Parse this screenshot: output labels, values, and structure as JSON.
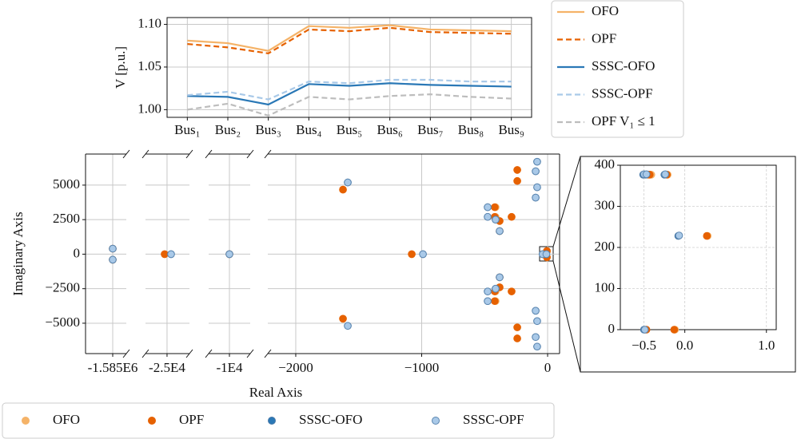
{
  "chart_data": [
    {
      "type": "line",
      "categories": [
        "Bus₁",
        "Bus₂",
        "Bus₃",
        "Bus₄",
        "Bus₅",
        "Bus₆",
        "Bus₇",
        "Bus₈",
        "Bus₉"
      ],
      "ylabel": "V [p.u.]",
      "ylim": [
        0.991,
        1.108
      ],
      "yticks": [
        {
          "value": 1,
          "label": "1.00"
        },
        {
          "value": 1.05,
          "label": "1.05"
        },
        {
          "value": 1.1,
          "label": "1.10"
        }
      ],
      "grid": true,
      "legend": "right",
      "series": [
        {
          "name": "OFO",
          "color": "#f5b368",
          "dashed": false,
          "values": [
            1.081,
            1.078,
            1.069,
            1.098,
            1.096,
            1.099,
            1.094,
            1.093,
            1.092
          ]
        },
        {
          "name": "OPF",
          "color": "#e66100",
          "dashed": true,
          "values": [
            1.077,
            1.073,
            1.066,
            1.094,
            1.092,
            1.096,
            1.091,
            1.09,
            1.089
          ]
        },
        {
          "name": "SSSC-OFO",
          "color": "#2a78b6",
          "dashed": false,
          "values": [
            1.016,
            1.015,
            1.006,
            1.03,
            1.028,
            1.031,
            1.029,
            1.028,
            1.027
          ]
        },
        {
          "name": "SSSC-OPF",
          "color": "#a9c9e8",
          "dashed": true,
          "values": [
            1.017,
            1.021,
            1.012,
            1.033,
            1.031,
            1.035,
            1.035,
            1.033,
            1.033
          ]
        },
        {
          "name": "OPF V₁ ≤ 1",
          "color": "#bdbdbd",
          "dashed": true,
          "values": [
            1.0,
            1.007,
            0.993,
            1.015,
            1.012,
            1.016,
            1.018,
            1.015,
            1.013
          ]
        }
      ]
    },
    {
      "type": "scatter",
      "xlabel": "Real Axis",
      "ylabel": "Imaginary Axis",
      "ylim": [
        -7200,
        7250
      ],
      "yticks": [
        5000,
        2500,
        0,
        {
          "value": -2500,
          "label": "−2500"
        },
        {
          "value": -5000,
          "label": "−5000"
        }
      ],
      "grid": true,
      "legend": "bottom",
      "panels": [
        {
          "xlim": [
            -1585216,
            -1584892
          ],
          "xticks": [
            {
              "value": -1585000,
              "label": "-1.585E6"
            }
          ]
        },
        {
          "xlim": [
            -25171,
            -24822
          ],
          "xticks": [
            {
              "value": -25000,
              "label": "-2.5E4"
            }
          ]
        },
        {
          "xlim": [
            -10165,
            -9835
          ],
          "xticks": [
            {
              "value": -10000,
              "label": "-1E4"
            }
          ]
        },
        {
          "xlim": [
            -2222,
            95
          ],
          "xticks": [
            {
              "value": -2000,
              "label": "−2000"
            },
            {
              "value": -1000,
              "label": "−1000"
            },
            0
          ]
        }
      ],
      "series": [
        {
          "name": "OFO",
          "color": "#f5b368",
          "edgecolor": "#f5b368",
          "x": [
            -1585000,
            -1585000,
            -25019,
            -10000,
            -1625,
            -1625,
            -1079,
            -241,
            -241,
            -241,
            -241,
            -413,
            -413,
            -413,
            -413,
            -381,
            -381,
            -286,
            -286,
            -381,
            -381,
            -5,
            -5
          ],
          "y": [
            400,
            -400,
            0,
            0,
            4674,
            -4674,
            0,
            6100,
            5300,
            -5300,
            -6100,
            3400,
            -3400,
            2700,
            -2700,
            2400,
            -2400,
            2700,
            -2700,
            1673,
            -1673,
            230,
            -230
          ]
        },
        {
          "name": "OPF",
          "color": "#e66100",
          "edgecolor": "#e66100",
          "x": [
            -1585000,
            -1585000,
            -25019,
            -10000,
            -1625,
            -1625,
            -1079,
            -241,
            -241,
            -241,
            -241,
            -420,
            -420,
            -420,
            -420,
            -381,
            -381,
            -286,
            -286,
            -381,
            -381,
            -6,
            -6
          ],
          "y": [
            400,
            -400,
            0,
            0,
            4674,
            -4674,
            0,
            6100,
            5300,
            -5300,
            -6100,
            3400,
            -3400,
            2700,
            -2700,
            2400,
            -2400,
            2700,
            -2700,
            1673,
            -1673,
            230,
            -230
          ]
        },
        {
          "name": "SSSC-OFO",
          "color": "#2a78b6",
          "edgecolor": "#4a7aa8",
          "x": [
            -1585000,
            -1585000,
            -24968,
            -10000,
            -1587,
            -1587,
            -990,
            -95,
            -95,
            -83,
            -83,
            -95,
            -95,
            -83,
            -83,
            -476,
            -476,
            -476,
            -476,
            -413,
            -413,
            -381,
            -381,
            -40,
            -10
          ],
          "y": [
            400,
            -400,
            0,
            0,
            5193,
            -5193,
            0,
            4097,
            -4097,
            4847,
            -4847,
            6001,
            -6001,
            6694,
            -6694,
            3400,
            -3400,
            2700,
            -2700,
            2500,
            -2500,
            1673,
            -1673,
            0,
            0
          ]
        },
        {
          "name": "SSSC-OPF",
          "color": "#a9c9e8",
          "edgecolor": "#5b86b0",
          "x": [
            -1585000,
            -1585000,
            -24968,
            -10000,
            -1587,
            -1587,
            -990,
            -95,
            -95,
            -83,
            -83,
            -95,
            -95,
            -83,
            -83,
            -476,
            -476,
            -476,
            -476,
            -413,
            -413,
            -381,
            -381,
            -40,
            -10
          ],
          "y": [
            400,
            -400,
            0,
            0,
            5193,
            -5193,
            0,
            4097,
            -4097,
            4847,
            -4847,
            6001,
            -6001,
            6694,
            -6694,
            3400,
            -3400,
            2700,
            -2700,
            2500,
            -2500,
            1673,
            -1673,
            0,
            0
          ]
        }
      ]
    },
    {
      "type": "scatter",
      "xlim": [
        -0.79,
        1.12
      ],
      "xticks": [
        {
          "value": -0.5,
          "label": "−0.5"
        },
        {
          "value": 0,
          "label": "0.0"
        },
        {
          "value": 1,
          "label": "1.0"
        }
      ],
      "ylim": [
        0,
        400
      ],
      "yticks": [
        0,
        100,
        200,
        300,
        400
      ],
      "grid": true,
      "series": [
        {
          "color": "#f5b368",
          "edgecolor": "#f5b368",
          "x": [
            -0.43,
            -0.41,
            -0.21,
            0.28,
            -0.48,
            -0.12
          ],
          "y": [
            377,
            377,
            377,
            228,
            0,
            0
          ]
        },
        {
          "color": "#e66100",
          "edgecolor": "#e66100",
          "x": [
            -0.45,
            -0.43,
            -0.22,
            0.27,
            -0.47,
            -0.13
          ],
          "y": [
            377,
            377,
            377,
            228,
            0,
            0
          ]
        },
        {
          "color": "#2a78b6",
          "edgecolor": "#4a7aa8",
          "x": [
            -0.51,
            -0.48,
            -0.25,
            -0.08,
            -0.5
          ],
          "y": [
            377,
            377,
            377,
            228,
            0
          ]
        },
        {
          "color": "#a9c9e8",
          "edgecolor": "#5b86b0",
          "x": [
            -0.5,
            -0.47,
            -0.24,
            -0.07,
            -0.49
          ],
          "y": [
            378,
            378,
            378,
            229,
            0
          ]
        }
      ]
    }
  ]
}
